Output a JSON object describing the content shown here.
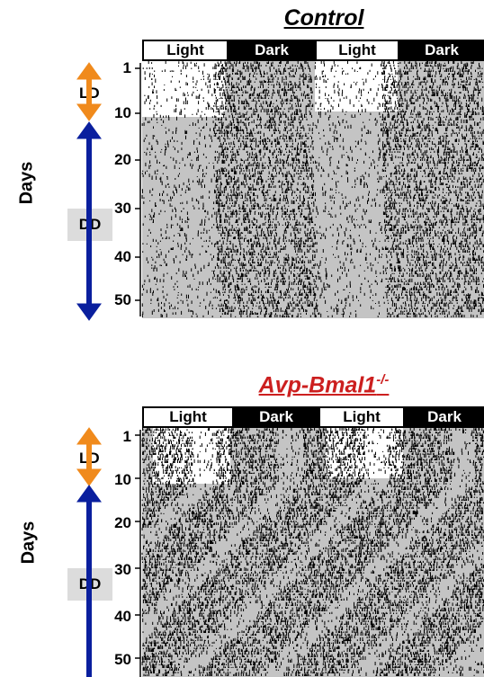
{
  "panels": [
    {
      "title": "Control",
      "title_sup": "",
      "title_color": "#000000",
      "bar_labels": [
        "Light",
        "Dark",
        "Light",
        "Dark"
      ],
      "day_ticks": [
        "1",
        "10",
        "20",
        "30",
        "40",
        "50"
      ],
      "days_label": "Days",
      "ld_label": "LD",
      "dd_label": "DD"
    },
    {
      "title": "Avp-Bmal1",
      "title_sup": "-/-",
      "title_color": "#cc1f1f",
      "bar_labels": [
        "Light",
        "Dark",
        "Light",
        "Dark"
      ],
      "day_ticks": [
        "1",
        "10",
        "20",
        "30",
        "40",
        "50"
      ],
      "days_label": "Days",
      "ld_label": "LD",
      "dd_label": "DD"
    }
  ],
  "colors": {
    "ld_arrow": "#f08a1c",
    "dd_arrow": "#0a1f9e",
    "dd_background": "#c4c4c4",
    "activity": "#000000"
  }
}
